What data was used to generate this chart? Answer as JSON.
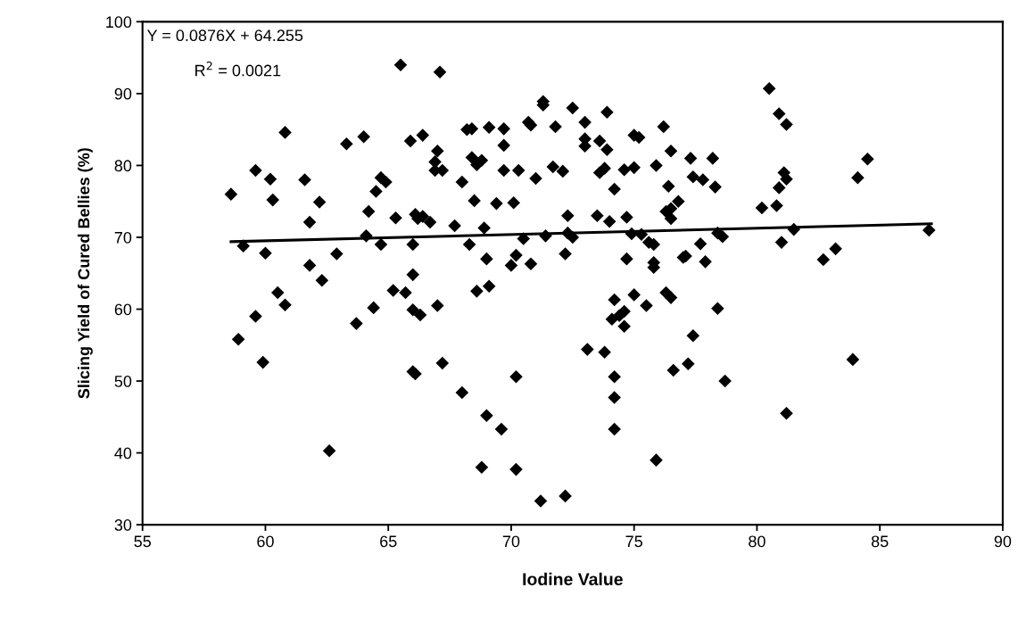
{
  "chart_data": {
    "type": "scatter",
    "xlabel": "Iodine Value",
    "ylabel": "Slicing Yield of Cured Bellies (%)",
    "xlim": [
      55,
      90
    ],
    "xticks": [
      55,
      60,
      65,
      70,
      75,
      80,
      85,
      90
    ],
    "ylim": [
      30,
      100
    ],
    "yticks": [
      30,
      40,
      50,
      60,
      70,
      80,
      90,
      100
    ],
    "grid": false,
    "legend": false,
    "marker": "diamond",
    "annotations": [
      "Y = 0.0876X + 64.255",
      "R$^{2}$ = 0.0021"
    ],
    "series": [
      {
        "color": "#000000",
        "x": [
          58.6,
          58.9,
          59.1,
          59.6,
          59.6,
          59.9,
          60.0,
          60.2,
          60.3,
          60.5,
          60.8,
          60.8,
          61.6,
          61.8,
          61.8,
          62.2,
          62.3,
          62.6,
          62.9,
          63.3,
          63.7,
          64.0,
          64.1,
          64.2,
          64.4,
          64.5,
          64.7,
          64.7,
          64.9,
          65.2,
          65.3,
          65.5,
          65.7,
          65.9,
          66.0,
          66.0,
          66.0,
          66.0,
          66.1,
          66.1,
          66.2,
          66.3,
          66.4,
          66.4,
          66.7,
          66.9,
          66.9,
          67.0,
          67.0,
          67.1,
          67.2,
          67.2,
          67.7,
          68.0,
          68.0,
          68.2,
          68.3,
          68.4,
          68.4,
          68.5,
          68.6,
          68.6,
          68.8,
          68.8,
          68.9,
          69.0,
          69.0,
          69.1,
          69.1,
          69.4,
          69.6,
          69.7,
          69.7,
          69.7,
          70.0,
          70.1,
          70.2,
          70.2,
          70.3,
          70.2,
          70.5,
          70.8,
          70.7,
          70.8,
          71.0,
          71.2,
          71.3,
          71.3,
          71.4,
          71.7,
          71.8,
          72.1,
          72.2,
          72.2,
          72.3,
          72.3,
          72.5,
          72.5,
          73.0,
          73.0,
          73.0,
          73.1,
          73.5,
          73.6,
          73.6,
          73.8,
          73.8,
          73.9,
          73.9,
          74.0,
          74.1,
          74.2,
          74.2,
          74.6,
          74.9,
          74.2,
          74.2,
          74.2,
          74.4,
          74.6,
          74.6,
          74.7,
          74.7,
          75.0,
          75.0,
          75.0,
          75.2,
          75.3,
          75.5,
          75.6,
          75.8,
          75.8,
          75.8,
          75.9,
          75.9,
          76.2,
          76.3,
          76.3,
          76.4,
          76.5,
          76.5,
          76.5,
          76.5,
          76.6,
          76.8,
          77.0,
          77.1,
          77.2,
          77.3,
          77.4,
          77.4,
          77.7,
          77.8,
          77.9,
          78.2,
          78.3,
          78.4,
          78.4,
          78.6,
          78.7,
          80.2,
          80.5,
          80.8,
          80.9,
          80.9,
          81.2,
          81.0,
          81.1,
          81.5,
          81.2,
          81.2,
          82.7,
          83.2,
          83.9,
          84.1,
          84.5,
          87.0
        ],
        "values": [
          76,
          55.8,
          68.8,
          79.3,
          59,
          52.6,
          67.8,
          78.1,
          75.2,
          62.3,
          60.6,
          84.6,
          78,
          72.1,
          66.1,
          74.9,
          64,
          40.3,
          67.7,
          83,
          58,
          84,
          70.2,
          73.6,
          60.2,
          76.4,
          69,
          78.3,
          77.7,
          62.6,
          72.7,
          94,
          62.3,
          83.4,
          59.9,
          64.8,
          69,
          51.3,
          73.2,
          51,
          72.6,
          59.2,
          84.2,
          72.9,
          72.1,
          80.5,
          79.3,
          82,
          60.5,
          93,
          52.5,
          79.3,
          71.6,
          48.4,
          77.7,
          85,
          69,
          81.1,
          85.1,
          75.1,
          62.5,
          80.1,
          38,
          80.7,
          71.3,
          45.2,
          67,
          63.2,
          85.3,
          74.7,
          43.3,
          85.1,
          82.8,
          79.3,
          66.1,
          74.8,
          37.7,
          67.5,
          79.3,
          50.6,
          69.8,
          66.3,
          86,
          85.6,
          78.2,
          33.3,
          88.9,
          88.4,
          70.2,
          79.8,
          85.4,
          79.2,
          67.7,
          34,
          73,
          70.6,
          70,
          88,
          82.7,
          83.7,
          86,
          54.4,
          73,
          83.4,
          79,
          79.6,
          54,
          87.4,
          82.2,
          72.2,
          58.6,
          47.7,
          43.3,
          57.6,
          70.5,
          61.3,
          50.6,
          76.7,
          59.1,
          59.7,
          79.4,
          72.8,
          67,
          84.2,
          62,
          79.7,
          83.9,
          70.4,
          60.5,
          69.3,
          69,
          66.5,
          65.8,
          39,
          80,
          85.4,
          62.3,
          73.6,
          77.1,
          74,
          72.6,
          82,
          61.6,
          51.5,
          75,
          67.2,
          67.4,
          52.4,
          81,
          78.4,
          56.3,
          69.1,
          78,
          66.6,
          81,
          77,
          60.1,
          70.6,
          70.1,
          50,
          74.1,
          90.7,
          74.4,
          76.9,
          87.2,
          45.5,
          69.3,
          79,
          71.1,
          85.7,
          78.1,
          66.9,
          68.4,
          53,
          78.3,
          80.9,
          71
        ]
      },
      {
        "type": "line",
        "color": "#000000",
        "x": [
          58.6,
          87.1
        ],
        "values": [
          69.39,
          71.89
        ],
        "marker": "none",
        "line_style": "solid"
      }
    ]
  }
}
